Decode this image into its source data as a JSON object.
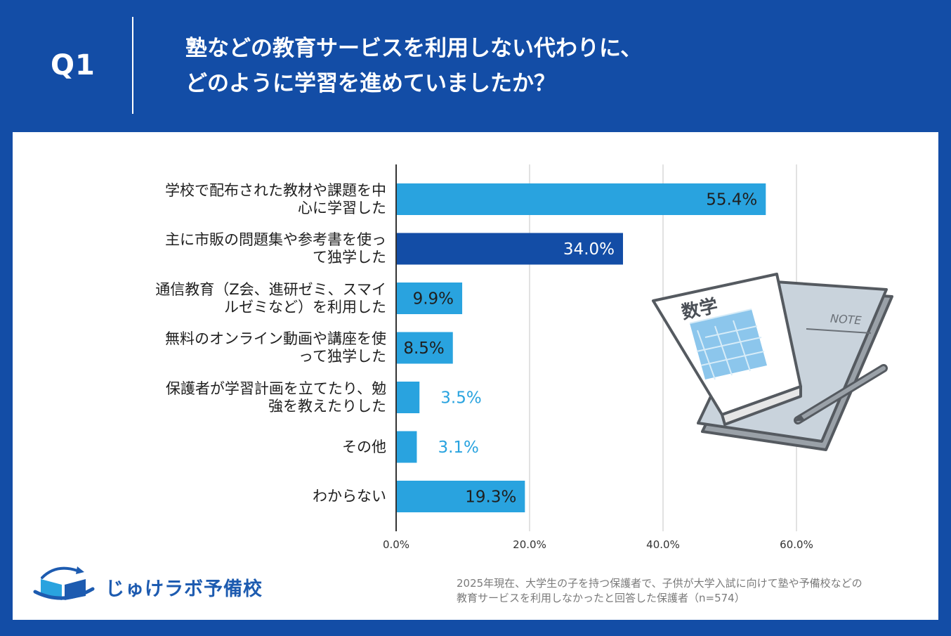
{
  "header": {
    "q_label": "Q1",
    "title_line1": "塾などの教育サービスを利用しない代わりに、",
    "title_line2": "どのように学習を進めていましたか？"
  },
  "colors": {
    "background": "#134da6",
    "bar_light": "#29a3df",
    "bar_dark": "#134da6",
    "label_light": "#29a3df"
  },
  "chart_data": {
    "type": "bar",
    "orientation": "horizontal",
    "categories": [
      [
        "学校で配布された教材や課題を中",
        "心に学習した"
      ],
      [
        "主に市販の問題集や参考書を使っ",
        "て独学した"
      ],
      [
        "通信教育（Z会、進研ゼミ、スマイ",
        "ルゼミなど）を利用した"
      ],
      [
        "無料のオンライン動画や講座を使",
        "って独学した"
      ],
      [
        "保護者が学習計画を立てたり、勉",
        "強を教えたりした"
      ],
      [
        "その他"
      ],
      [
        "わからない"
      ]
    ],
    "values": [
      55.4,
      34.0,
      9.9,
      8.5,
      3.5,
      3.1,
      19.3
    ],
    "value_labels": [
      "55.4%",
      "34.0%",
      "9.9%",
      "8.5%",
      "3.5%",
      "3.1%",
      "19.3%"
    ],
    "highlight_index": 1,
    "xlim": [
      0,
      60
    ],
    "xticks": [
      0,
      20,
      40,
      60
    ],
    "xtick_labels": [
      "0.0%",
      "20.0%",
      "40.0%",
      "60.0%"
    ],
    "grid": true
  },
  "illustration": {
    "book_title": "数学",
    "notebook_label": "NOTE"
  },
  "logo": {
    "text": "じゅけラボ予備校"
  },
  "source": {
    "line1": "2025年現在、大学生の子を持つ保護者で、子供が大学入試に向けて塾や予備校などの",
    "line2": "教育サービスを利用しなかったと回答した保護者（n=574）"
  }
}
